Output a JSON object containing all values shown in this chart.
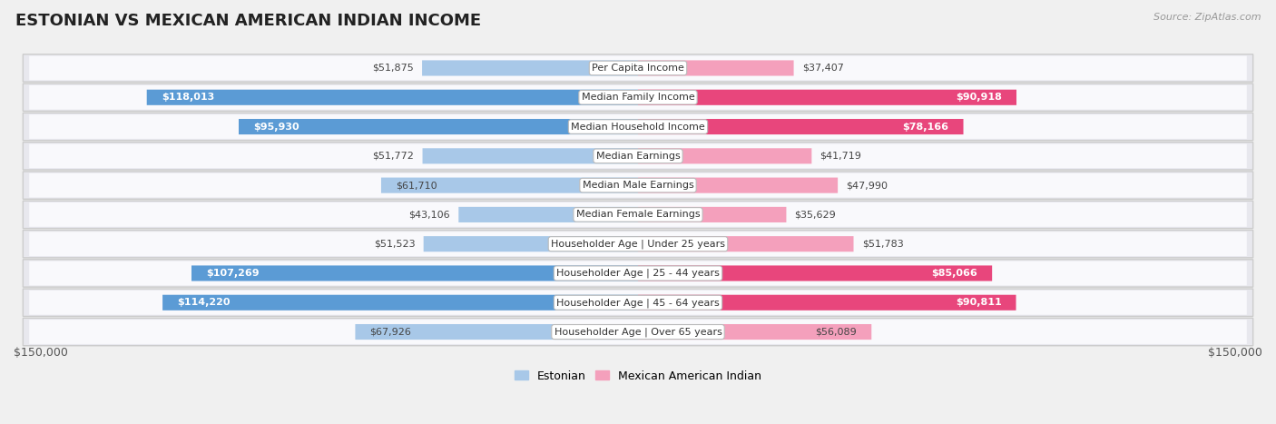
{
  "title": "Estonian vs Mexican American Indian Income",
  "source": "Source: ZipAtlas.com",
  "categories": [
    "Per Capita Income",
    "Median Family Income",
    "Median Household Income",
    "Median Earnings",
    "Median Male Earnings",
    "Median Female Earnings",
    "Householder Age | Under 25 years",
    "Householder Age | 25 - 44 years",
    "Householder Age | 45 - 64 years",
    "Householder Age | Over 65 years"
  ],
  "estonian_values": [
    51875,
    118013,
    95930,
    51772,
    61710,
    43106,
    51523,
    107269,
    114220,
    67926
  ],
  "mexican_values": [
    37407,
    90918,
    78166,
    41719,
    47990,
    35629,
    51783,
    85066,
    90811,
    56089
  ],
  "estonian_color_light": "#a8c8e8",
  "estonian_color_dark": "#5b9bd5",
  "mexican_color_light": "#f4a0bc",
  "mexican_color_dark": "#e8467c",
  "estonian_label": "Estonian",
  "mexican_label": "Mexican American Indian",
  "max_value": 150000,
  "bg_color": "#f0f0f0",
  "row_outer_color": "#e0e0e8",
  "row_inner_color": "#f8f8fc",
  "xlabel_left": "$150,000",
  "xlabel_right": "$150,000",
  "title_fontsize": 13,
  "source_fontsize": 8,
  "cat_fontsize": 8,
  "val_fontsize": 8,
  "inside_threshold": 55000,
  "white_inside_threshold": 70000
}
